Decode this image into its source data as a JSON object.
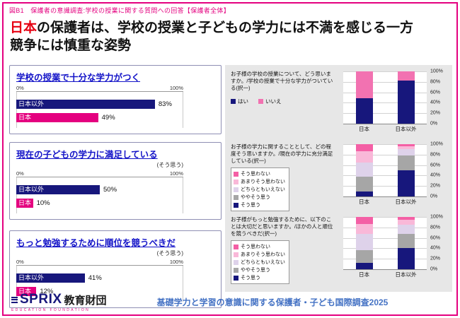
{
  "page": {
    "header": "図B1　保護者の意識調査:学校の授業に関する質問への回答【保護者全体】",
    "title": {
      "highlight": "日本",
      "line1_rest": "の保護者は、学校の授業と子どもの学力には不満を感じる一方",
      "line2": "競争には慎重な姿勢"
    },
    "footer": {
      "survey_title": "基礎学力と学習の意識に関する保護者・子ども国際調査2025",
      "logo_text": "SPRIX",
      "logo_suffix": "教育財団",
      "logo_subtitle": "EDUCATION FOUNDATION"
    }
  },
  "colors": {
    "accent_magenta": "#e4007f",
    "navy": "#17177c",
    "title_red": "#e60012",
    "box_title_blue": "#1414c8",
    "footer_blue": "#4472c4",
    "panel_gray": "#e7e7e7",
    "neutral_gray": "#a6a6a6"
  },
  "chart_data": [
    {
      "type": "bar",
      "title": "学校の授業で十分な学力がつく",
      "note": "",
      "categories": [
        "日本以外",
        "日本"
      ],
      "values": [
        83,
        49
      ],
      "bar_colors": [
        "#17177c",
        "#e4007f"
      ],
      "xlim": [
        0,
        100
      ],
      "xmin_label": "0%",
      "xmax_label": "100%",
      "value_suffix": "%"
    },
    {
      "type": "bar",
      "title": "現在の子どもの学力に満足している",
      "note": "(そう思う)",
      "categories": [
        "日本以外",
        "日本"
      ],
      "values": [
        50,
        10
      ],
      "bar_colors": [
        "#17177c",
        "#e4007f"
      ],
      "xlim": [
        0,
        100
      ],
      "xmin_label": "0%",
      "xmax_label": "100%",
      "value_suffix": "%"
    },
    {
      "type": "bar",
      "title": "もっと勉強するために順位を競うべきだ",
      "note": "(そう思う)",
      "categories": [
        "日本以外",
        "日本"
      ],
      "values": [
        41,
        12
      ],
      "bar_colors": [
        "#17177c",
        "#e4007f"
      ],
      "xlim": [
        0,
        100
      ],
      "xmin_label": "0%",
      "xmax_label": "100%",
      "value_suffix": "%"
    },
    {
      "type": "stacked-bar",
      "question": "お子様の学校の授業について、どう思いますか。/学校の授業で十分な学力がついている(択一)",
      "categories": [
        "日本",
        "日本以外"
      ],
      "ylim": [
        0,
        100
      ],
      "ytick_step": 20,
      "legend_reversed": false,
      "series": [
        {
          "name": "はい",
          "color": "#17177c",
          "values": [
            49,
            83
          ]
        },
        {
          "name": "いいえ",
          "color": "#f272b1",
          "values": [
            51,
            17
          ]
        }
      ]
    },
    {
      "type": "stacked-bar",
      "question": "お子様の学力に関することとして、どの程度そう思いますか。/現在の学力に充分満足している(択一)",
      "categories": [
        "日本",
        "日本以外"
      ],
      "ylim": [
        0,
        100
      ],
      "ytick_step": 20,
      "legend_reversed": true,
      "series": [
        {
          "name": "そう思う",
          "color": "#17177c",
          "values": [
            10,
            50
          ]
        },
        {
          "name": "ややそう思う",
          "color": "#a6a6a6",
          "values": [
            28,
            28
          ]
        },
        {
          "name": "どちらともいえない",
          "color": "#ded2ea",
          "values": [
            27,
            12
          ]
        },
        {
          "name": "あまりそう思わない",
          "color": "#f9b8d8",
          "values": [
            22,
            6
          ]
        },
        {
          "name": "そう思わない",
          "color": "#f45fa5",
          "values": [
            13,
            4
          ]
        }
      ]
    },
    {
      "type": "stacked-bar",
      "question": "お子様がもっと勉強するために、以下のことは大切だと思いますか。/ほかの人と順位を競うべきだ(択一)",
      "categories": [
        "日本",
        "日本以外"
      ],
      "ylim": [
        0,
        100
      ],
      "ytick_step": 20,
      "legend_reversed": true,
      "series": [
        {
          "name": "そう思う",
          "color": "#17177c",
          "values": [
            12,
            41
          ]
        },
        {
          "name": "ややそう思う",
          "color": "#a6a6a6",
          "values": [
            25,
            27
          ]
        },
        {
          "name": "どちらともいえない",
          "color": "#ded2ea",
          "values": [
            30,
            17
          ]
        },
        {
          "name": "あまりそう思わない",
          "color": "#f9b8d8",
          "values": [
            20,
            9
          ]
        },
        {
          "name": "そう思わない",
          "color": "#f45fa5",
          "values": [
            13,
            6
          ]
        }
      ]
    }
  ]
}
